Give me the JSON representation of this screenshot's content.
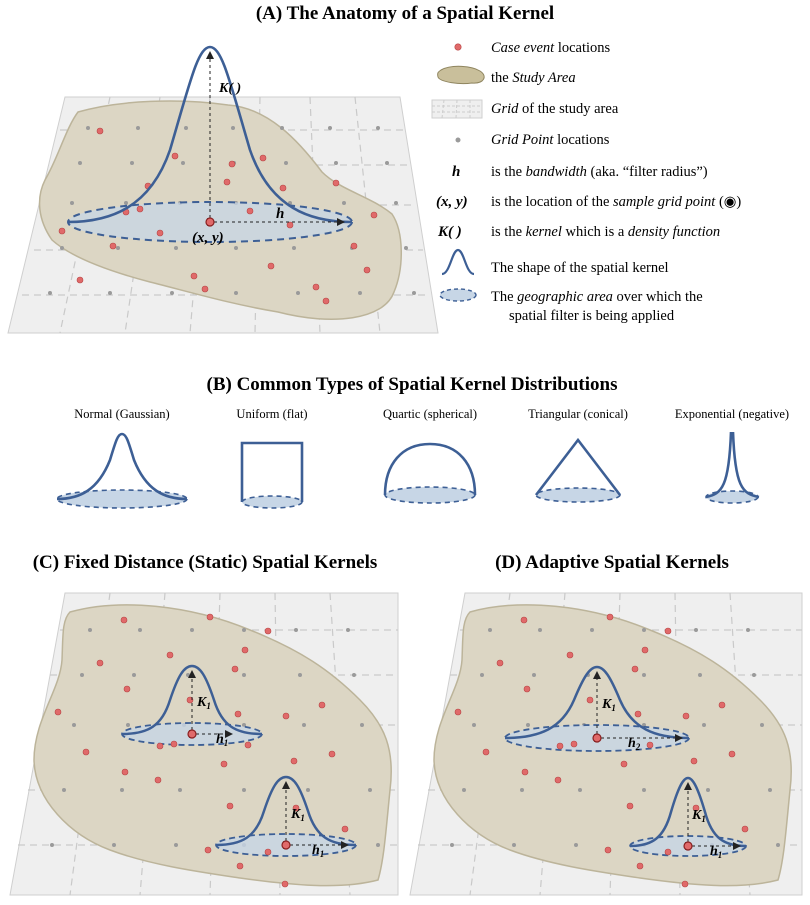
{
  "panel_a": {
    "title": "(A)  The Anatomy of a Spatial Kernel",
    "k_label": "K( )",
    "h_label": "h",
    "xy_label": "(x, y)",
    "legend": [
      {
        "icon": "case-dot-icon",
        "pre": "",
        "italic": "Case event",
        "post": " locations"
      },
      {
        "icon": "study-area-icon",
        "pre": "the ",
        "italic": "Study Area",
        "post": ""
      },
      {
        "icon": "grid-icon",
        "pre": "",
        "italic": "Grid",
        "post": " of the study area"
      },
      {
        "icon": "grid-point-icon",
        "pre": "",
        "italic": "Grid Point",
        "post": " locations"
      },
      {
        "icon": "bandwidth-symbol",
        "sym": "h",
        "pre": "is the ",
        "italic": "bandwidth",
        "post": " (aka.  “filter radius”)"
      },
      {
        "icon": "xy-symbol",
        "sym": "(x, y)",
        "pre": "is the location of the ",
        "italic": "sample grid point",
        "post": " (◉)"
      },
      {
        "icon": "kernel-symbol",
        "sym": "K( )",
        "pre": "is the ",
        "italic": "kernel",
        "post": " which is a ",
        "italic2": "density function"
      },
      {
        "icon": "kernel-shape-icon",
        "pre": "The shape of the spatial kernel",
        "italic": "",
        "post": ""
      },
      {
        "icon": "geo-area-icon",
        "pre": "The ",
        "italic": "geographic area",
        "post": " over which the",
        "line2": "spatial filter is being applied"
      }
    ]
  },
  "panel_b": {
    "title": "(B) Common Types of Spatial Kernel Distributions",
    "types": [
      "Normal (Gaussian)",
      "Uniform (flat)",
      "Quartic (spherical)",
      "Triangular (conical)",
      "Exponential (negative)"
    ]
  },
  "panel_c": {
    "title": "(C) Fixed Distance (Static) Spatial Kernels",
    "k1": "K",
    "k2": "K",
    "h1": "h",
    "h2": "h",
    "sub1": "1",
    "sub2": "1",
    "sub3": "1",
    "sub4": "1"
  },
  "panel_d": {
    "title": "(D)  Adaptive Spatial Kernels",
    "k1": "K",
    "k2": "K",
    "h1": "h",
    "h2": "h",
    "sub1": "1",
    "sub2": "1",
    "sub3": "2",
    "sub4": "1"
  },
  "colors": {
    "kernel_line": "#3d5f95",
    "study_area": "#dcd6c4",
    "plane": "#efefef",
    "case_dot": "#e06a6a",
    "ellipse_fill": "#c7d6e6"
  }
}
